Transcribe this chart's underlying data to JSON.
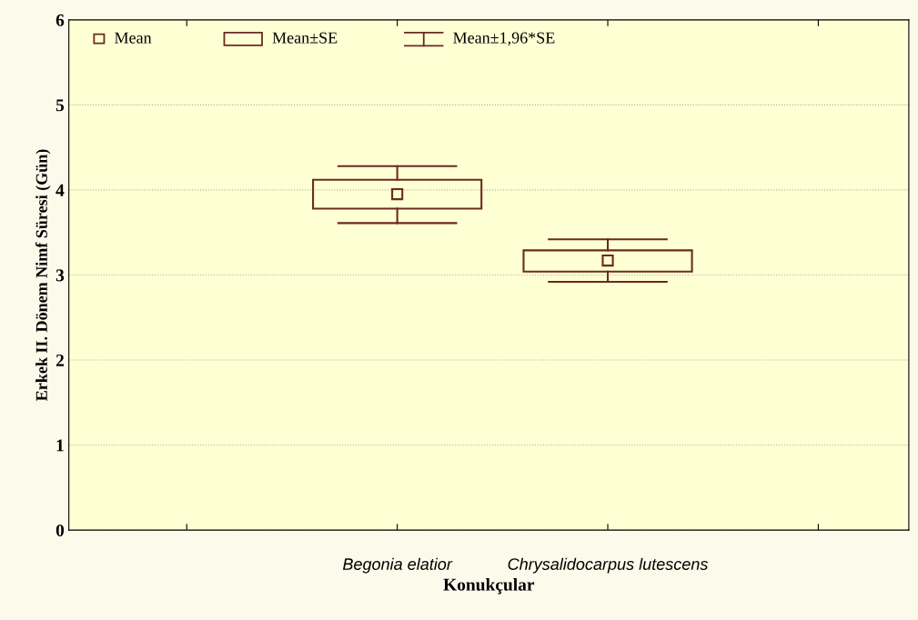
{
  "chart_data": {
    "type": "box",
    "xlabel": "Konukçular",
    "ylabel": "Erkek II. Dönem Nimf Süresi (Gün)",
    "categories": [
      "Begonia elatior",
      "Chrysalidocarpus lutescens"
    ],
    "series": [
      {
        "color": "#6b2a1e",
        "boxes": [
          {
            "low": 3.61,
            "q1": 3.78,
            "median": 3.95,
            "q3": 4.12,
            "high": 4.28
          },
          {
            "low": 2.92,
            "q1": 3.04,
            "median": 3.17,
            "q3": 3.29,
            "high": 3.42
          }
        ]
      }
    ],
    "annotations": [
      "Mean",
      "Mean±SE",
      "Mean±1,96*SE"
    ],
    "marker": "square",
    "ylim": [
      0,
      6
    ],
    "yticks": [
      0,
      1,
      2,
      3,
      4,
      5,
      6
    ],
    "grid": "y"
  }
}
